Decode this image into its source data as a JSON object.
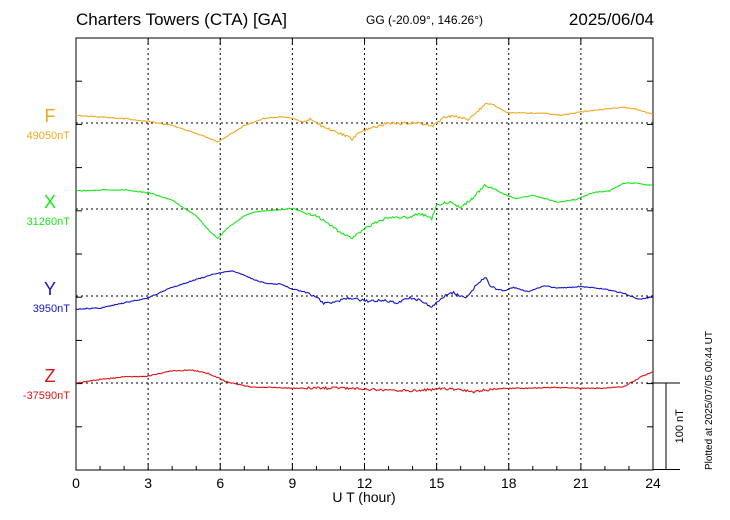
{
  "header": {
    "station": "Charters Towers (CTA)  [GA]",
    "coords": "GG (-20.09°, 146.26°)",
    "date": "2025/06/04"
  },
  "plotted_note": "Plotted at 2025/07/05 00:44 UT",
  "colors": {
    "F": "#f0a820",
    "X": "#19e619",
    "Y": "#1414c8",
    "Z": "#dc1414",
    "axis": "#000000",
    "grid": "#000000"
  },
  "chart_data": {
    "type": "line",
    "title": "Charters Towers (CTA)  [GA]",
    "xlabel": "U T (hour)",
    "xlim": [
      0,
      24
    ],
    "xticks": [
      0,
      3,
      6,
      9,
      12,
      15,
      18,
      21,
      24
    ],
    "scale_bar": {
      "value": 100,
      "label": "100 nT"
    },
    "baseline_spacing_nT": 100,
    "grid": true,
    "series": [
      {
        "name": "F",
        "baseline_label": "49050nT",
        "baseline": 49050,
        "points": [
          [
            0,
            49059
          ],
          [
            1,
            49057
          ],
          [
            2,
            49055
          ],
          [
            3,
            49052
          ],
          [
            4,
            49047
          ],
          [
            4.8,
            49040
          ],
          [
            5.5,
            49033
          ],
          [
            5.9,
            49028
          ],
          [
            6.3,
            49035
          ],
          [
            7,
            49047
          ],
          [
            7.8,
            49055
          ],
          [
            8.5,
            49057
          ],
          [
            9,
            49056
          ],
          [
            9.4,
            49051
          ],
          [
            9.8,
            49055
          ],
          [
            10.2,
            49047
          ],
          [
            10.8,
            49040
          ],
          [
            11.3,
            49034
          ],
          [
            11.5,
            49031
          ],
          [
            11.8,
            49040
          ],
          [
            12.4,
            49045
          ],
          [
            13,
            49050
          ],
          [
            13.5,
            49049
          ],
          [
            14.2,
            49051
          ],
          [
            14.8,
            49046
          ],
          [
            15,
            49050
          ],
          [
            15.3,
            49056
          ],
          [
            15.8,
            49058
          ],
          [
            16.3,
            49054
          ],
          [
            16.8,
            49066
          ],
          [
            17.1,
            49074
          ],
          [
            17.5,
            49069
          ],
          [
            17.9,
            49062
          ],
          [
            18.5,
            49062
          ],
          [
            19.5,
            49061
          ],
          [
            20.2,
            49059
          ],
          [
            21,
            49063
          ],
          [
            22,
            49066
          ],
          [
            22.8,
            49068
          ],
          [
            23.3,
            49066
          ],
          [
            24,
            49060
          ]
        ]
      },
      {
        "name": "X",
        "baseline_label": "31260nT",
        "baseline": 31260,
        "points": [
          [
            0,
            31281
          ],
          [
            1,
            31282
          ],
          [
            2,
            31282
          ],
          [
            3,
            31279
          ],
          [
            4,
            31270
          ],
          [
            5,
            31252
          ],
          [
            5.5,
            31236
          ],
          [
            5.9,
            31226
          ],
          [
            6.3,
            31238
          ],
          [
            7,
            31252
          ],
          [
            7.5,
            31257
          ],
          [
            8,
            31258
          ],
          [
            8.5,
            31259
          ],
          [
            9,
            31261
          ],
          [
            9.5,
            31256
          ],
          [
            10,
            31252
          ],
          [
            10.5,
            31243
          ],
          [
            11,
            31232
          ],
          [
            11.5,
            31226
          ],
          [
            12,
            31237
          ],
          [
            12.5,
            31245
          ],
          [
            13,
            31250
          ],
          [
            13.8,
            31250
          ],
          [
            14.3,
            31255
          ],
          [
            14.8,
            31249
          ],
          [
            15,
            31264
          ],
          [
            15.5,
            31268
          ],
          [
            16,
            31262
          ],
          [
            16.5,
            31272
          ],
          [
            17,
            31288
          ],
          [
            17.3,
            31285
          ],
          [
            17.8,
            31277
          ],
          [
            18.3,
            31272
          ],
          [
            19,
            31276
          ],
          [
            20,
            31268
          ],
          [
            20.8,
            31271
          ],
          [
            21.5,
            31279
          ],
          [
            22.2,
            31281
          ],
          [
            22.8,
            31290
          ],
          [
            23.3,
            31290
          ],
          [
            24,
            31287
          ]
        ]
      },
      {
        "name": "Y",
        "baseline_label": "3950nT",
        "baseline": 3950,
        "points": [
          [
            0,
            3935
          ],
          [
            1,
            3936
          ],
          [
            2,
            3942
          ],
          [
            3,
            3948
          ],
          [
            4,
            3960
          ],
          [
            5,
            3969
          ],
          [
            5.8,
            3976
          ],
          [
            6.5,
            3979
          ],
          [
            7,
            3974
          ],
          [
            7.5,
            3968
          ],
          [
            8,
            3964
          ],
          [
            8.5,
            3964
          ],
          [
            9,
            3958
          ],
          [
            9.5,
            3955
          ],
          [
            10,
            3949
          ],
          [
            10.3,
            3941
          ],
          [
            10.8,
            3944
          ],
          [
            11.3,
            3947
          ],
          [
            11.7,
            3946
          ],
          [
            12.2,
            3944
          ],
          [
            12.8,
            3945
          ],
          [
            13.4,
            3942
          ],
          [
            13.9,
            3948
          ],
          [
            14.4,
            3944
          ],
          [
            14.8,
            3937
          ],
          [
            15.2,
            3948
          ],
          [
            15.7,
            3954
          ],
          [
            16.2,
            3947
          ],
          [
            16.7,
            3964
          ],
          [
            17,
            3972
          ],
          [
            17.3,
            3960
          ],
          [
            17.8,
            3956
          ],
          [
            18.2,
            3960
          ],
          [
            18.8,
            3955
          ],
          [
            19.5,
            3962
          ],
          [
            20,
            3959
          ],
          [
            21,
            3961
          ],
          [
            22,
            3958
          ],
          [
            22.8,
            3953
          ],
          [
            23.4,
            3946
          ],
          [
            24,
            3949
          ]
        ]
      },
      {
        "name": "Z",
        "baseline_label": "-37590nT",
        "baseline": -37590,
        "points": [
          [
            0,
            -37590
          ],
          [
            1,
            -37586
          ],
          [
            2,
            -37583
          ],
          [
            3,
            -37582
          ],
          [
            4,
            -37576
          ],
          [
            4.8,
            -37575
          ],
          [
            5.5,
            -37579
          ],
          [
            6.3,
            -37589
          ],
          [
            7.3,
            -37595
          ],
          [
            8,
            -37595
          ],
          [
            9,
            -37596
          ],
          [
            10,
            -37596
          ],
          [
            11,
            -37596
          ],
          [
            12,
            -37597
          ],
          [
            13,
            -37599
          ],
          [
            14,
            -37599
          ],
          [
            15,
            -37597
          ],
          [
            16,
            -37597
          ],
          [
            16.5,
            -37601
          ],
          [
            17,
            -37598
          ],
          [
            18,
            -37596
          ],
          [
            19,
            -37596
          ],
          [
            20,
            -37595
          ],
          [
            21,
            -37596
          ],
          [
            22,
            -37596
          ],
          [
            22.8,
            -37594
          ],
          [
            23.5,
            -37583
          ],
          [
            24,
            -37577
          ]
        ]
      }
    ]
  }
}
